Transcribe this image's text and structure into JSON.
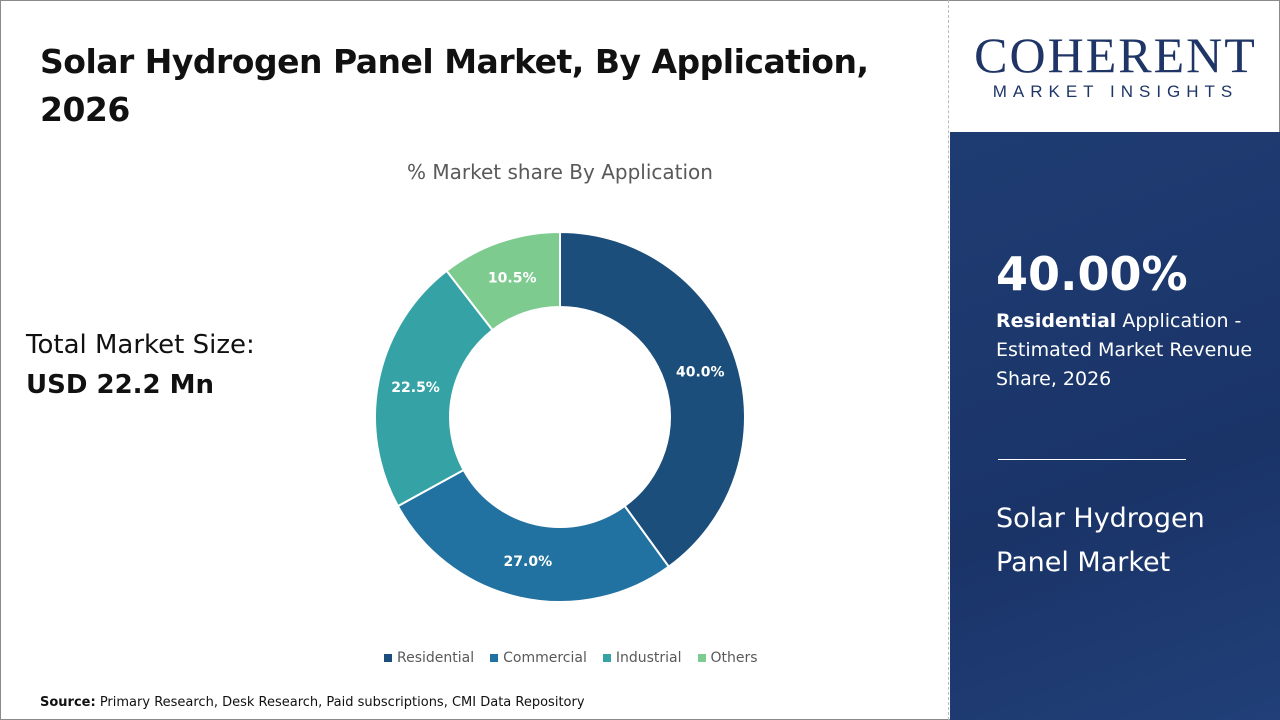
{
  "title": "Solar Hydrogen Panel Market, By Application, 2026",
  "total": {
    "label": "Total Market Size:",
    "value": "USD 22.2 Mn"
  },
  "logo": {
    "line1": "COHERENT",
    "line2": "MARKET INSIGHTS"
  },
  "panel": {
    "percent": "40.00%",
    "segment": "Residential",
    "description": " Application - Estimated Market Revenue Share, 2026",
    "market": "Solar Hydrogen Panel Market"
  },
  "source": {
    "label": "Source:",
    "text": " Primary Research, Desk Research, Paid subscriptions, CMI Data Repository"
  },
  "chart_data": {
    "type": "pie",
    "variant": "donut",
    "title": "% Market share By Application",
    "categories": [
      "Residential",
      "Commercial",
      "Industrial",
      "Others"
    ],
    "values": [
      40.0,
      27.0,
      22.5,
      10.5
    ],
    "labels": [
      "40.0%",
      "27.0%",
      "22.5%",
      "10.5%"
    ],
    "colors": [
      "#1c4e7b",
      "#2272a1",
      "#35a2a5",
      "#7ecb90"
    ],
    "legend": "bottom"
  }
}
